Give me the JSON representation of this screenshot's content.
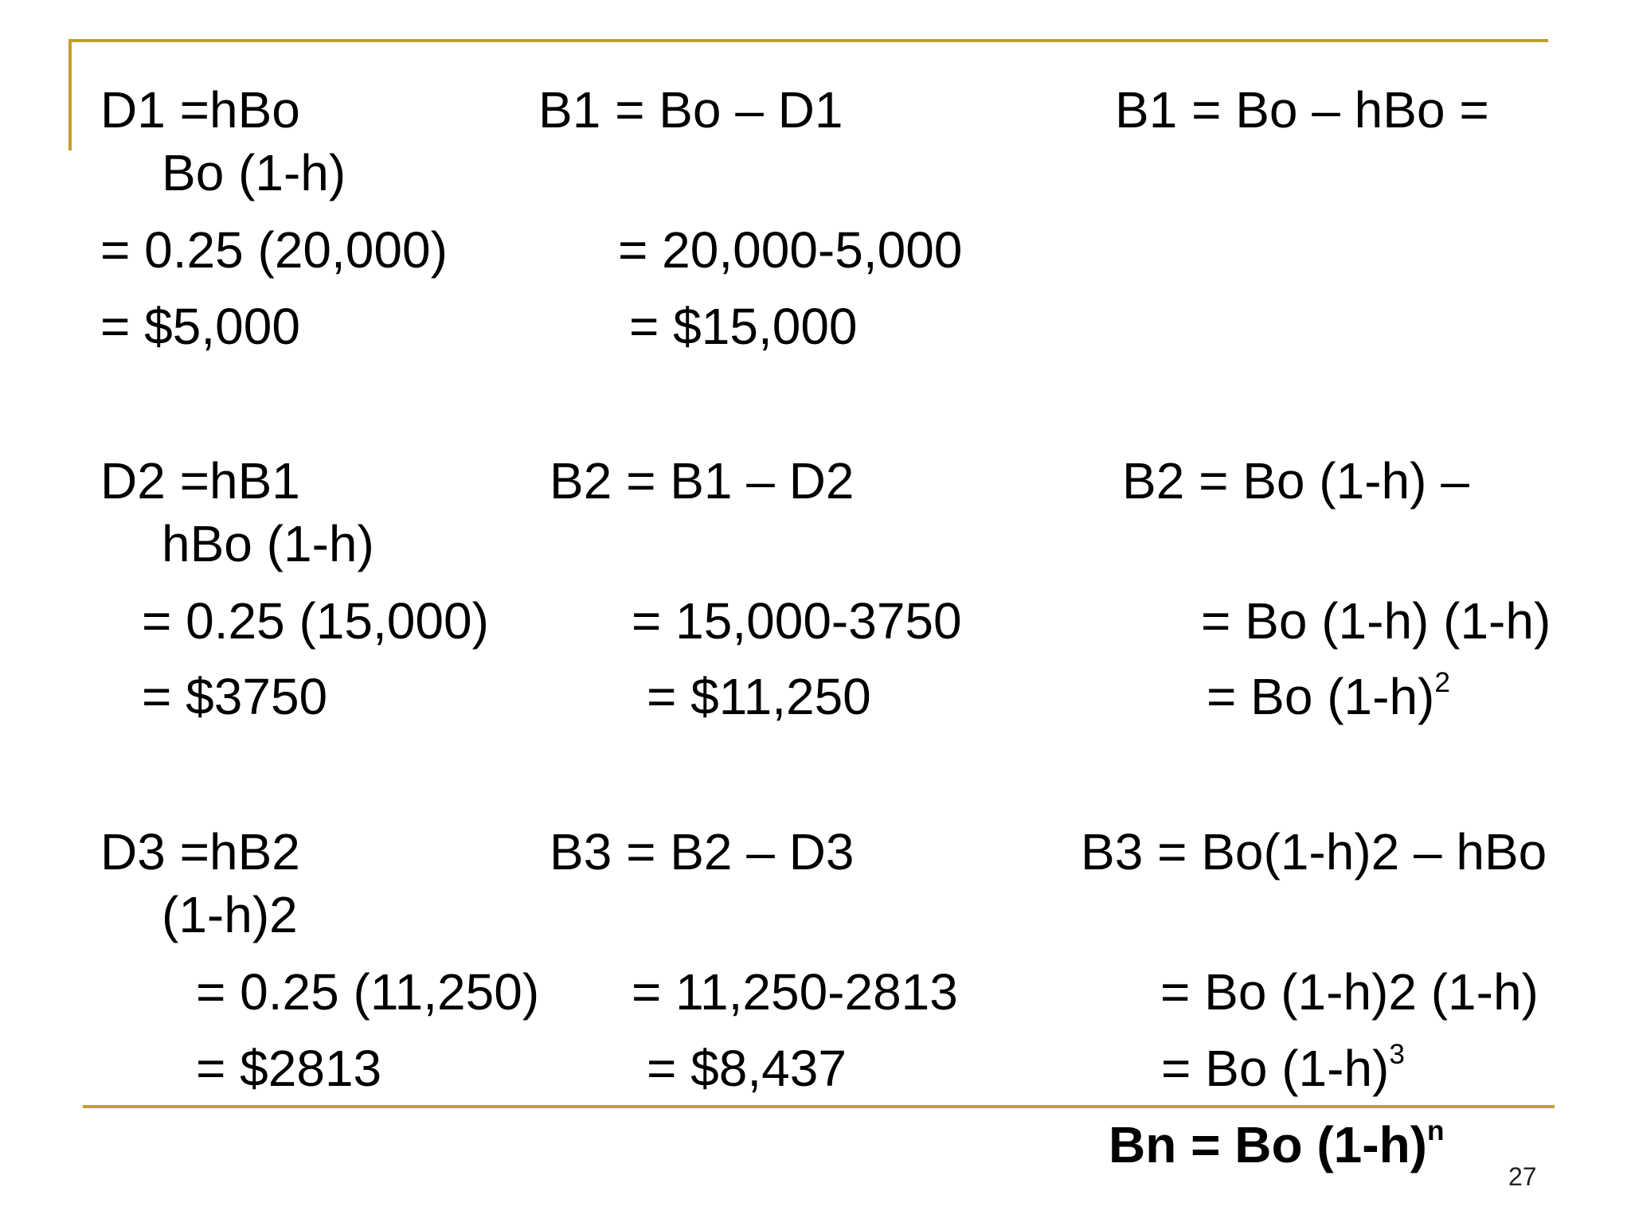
{
  "colors": {
    "accent_rule": "#c0a02a",
    "text": "#000000"
  },
  "row1": {
    "d_eq": "D1 =hBo",
    "d_eq_cont": "Bo (1-h)",
    "d_calc": "= 0.25 (20,000)",
    "d_result": "= $5,000",
    "b_eq": "B1 = Bo – D1",
    "b_calc": "= 20,000-5,000",
    "b_result": "= $15,000",
    "g_eq": "B1 = Bo – hBo ="
  },
  "row2": {
    "d_eq": "D2 =hB1",
    "d_eq_cont": "hBo (1-h)",
    "d_calc": "= 0.25 (15,000)",
    "d_result": "= $3750",
    "b_eq": "B2 = B1 – D2",
    "b_calc": "= 15,000-3750",
    "b_result": "= $11,250",
    "g_eq": "B2 = Bo (1-h) –",
    "g_step": "= Bo (1-h) (1-h)",
    "g_result": "= Bo (1-h)",
    "g_result_exp": "2"
  },
  "row3": {
    "d_eq": "D3 =hB2",
    "d_eq_cont": "(1-h)2",
    "d_calc": "= 0.25 (11,250)",
    "d_result": "= $2813",
    "b_eq": "B3 = B2 – D3",
    "b_calc": "= 11,250-2813",
    "b_result": "= $8,437",
    "g_eq": "B3 = Bo(1-h)2 – hBo",
    "g_step": "= Bo (1-h)2 (1-h)",
    "g_result": "= Bo (1-h)",
    "g_result_exp": "3"
  },
  "general_formula": {
    "text": "Bn = Bo (1-h)",
    "exp": "n"
  },
  "slide_number": "27"
}
